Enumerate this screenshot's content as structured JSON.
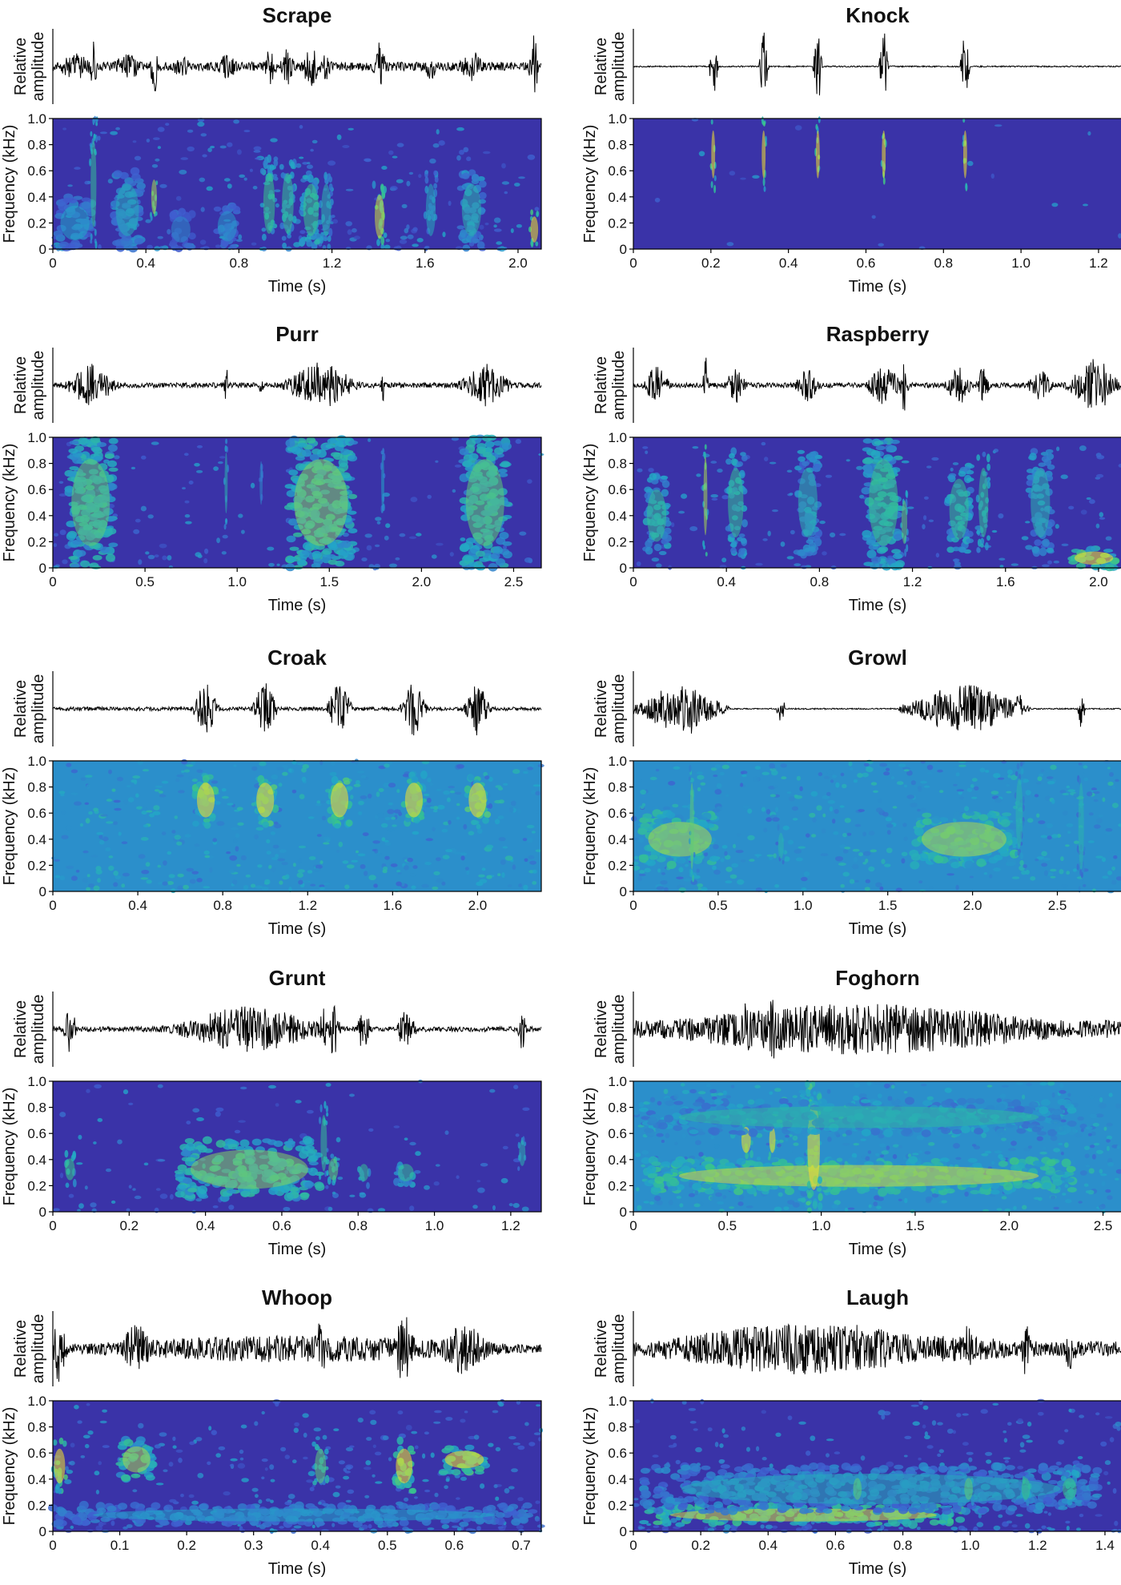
{
  "figure": {
    "y_label_waveform": [
      "Relative",
      "amplitude"
    ],
    "y_label_spectrogram": "Frequency (kHz)",
    "x_label": "Time (s)",
    "freq_ticks": [
      "0",
      "0.2",
      "0.4",
      "0.6",
      "0.8",
      "1.0"
    ],
    "colors": {
      "background": "#3a33a8",
      "low": "#3f5fd0",
      "mid": "#22a6c8",
      "high": "#39c48a",
      "peak": "#f5e12a",
      "waveform": "#000000"
    }
  },
  "chart_data": [
    {
      "type": "heatmap",
      "title": "Scrape",
      "xlim": [
        0,
        2.1
      ],
      "ylim": [
        0,
        1.0
      ],
      "x_ticks": [
        0,
        0.4,
        0.8,
        1.2,
        1.6,
        2.0
      ],
      "x_tick_labels": [
        "0",
        "0.4",
        "0.8",
        "1.2",
        "1.6",
        "2.0"
      ],
      "xlabel": "Time (s)",
      "ylabel": "Frequency (kHz)",
      "noise": 0.25,
      "background": "dark",
      "waveform_noise": 0.35,
      "bursts": [
        [
          0.02,
          0.15,
          0,
          0.4,
          0.5
        ],
        [
          0.16,
          0.03,
          0,
          1.0,
          0.7
        ],
        [
          0.26,
          0.12,
          0,
          0.6,
          0.55
        ],
        [
          0.42,
          0.03,
          0.2,
          0.6,
          0.9
        ],
        [
          0.5,
          0.1,
          0,
          0.3,
          0.4
        ],
        [
          0.7,
          0.1,
          0,
          0.35,
          0.45
        ],
        [
          0.9,
          0.06,
          0,
          0.7,
          0.75
        ],
        [
          0.98,
          0.06,
          0,
          0.7,
          0.7
        ],
        [
          1.07,
          0.08,
          0,
          0.6,
          0.75
        ],
        [
          1.15,
          0.05,
          0,
          0.6,
          0.6
        ],
        [
          1.38,
          0.05,
          0,
          0.5,
          0.95
        ],
        [
          1.6,
          0.05,
          0,
          0.6,
          0.55
        ],
        [
          1.75,
          0.1,
          0,
          0.6,
          0.6
        ],
        [
          2.05,
          0.04,
          0,
          0.3,
          1.0
        ]
      ]
    },
    {
      "type": "heatmap",
      "title": "Knock",
      "xlim": [
        0,
        1.26
      ],
      "ylim": [
        0,
        1.0
      ],
      "x_ticks": [
        0,
        0.2,
        0.4,
        0.6,
        0.8,
        1.0,
        1.2
      ],
      "x_tick_labels": [
        "0",
        "0.2",
        "0.4",
        "0.6",
        "0.8",
        "1.0",
        "1.2"
      ],
      "xlabel": "Time (s)",
      "ylabel": "Frequency (kHz)",
      "noise": 0.02,
      "background": "dark",
      "waveform_noise": 0.05,
      "bursts": [
        [
          0.2,
          0.012,
          0.45,
          1.0,
          1.0
        ],
        [
          0.33,
          0.012,
          0.45,
          1.0,
          1.0
        ],
        [
          0.47,
          0.012,
          0.45,
          1.0,
          1.0
        ],
        [
          0.64,
          0.012,
          0.45,
          1.0,
          1.0
        ],
        [
          0.85,
          0.012,
          0.45,
          1.0,
          1.0
        ]
      ]
    },
    {
      "type": "heatmap",
      "title": "Purr",
      "xlim": [
        0,
        2.65
      ],
      "ylim": [
        0,
        1.0
      ],
      "x_ticks": [
        0,
        0.5,
        1.0,
        1.5,
        2.0,
        2.5
      ],
      "x_tick_labels": [
        "0",
        "0.5",
        "1.0",
        "1.5",
        "2.0",
        "2.5"
      ],
      "xlabel": "Time (s)",
      "ylabel": "Frequency (kHz)",
      "noise": 0.15,
      "background": "dark",
      "waveform_noise": 0.2,
      "bursts": [
        [
          0.08,
          0.25,
          0,
          1.0,
          0.8
        ],
        [
          1.28,
          0.35,
          0,
          1.0,
          0.85
        ],
        [
          2.22,
          0.25,
          0,
          1.0,
          0.8
        ],
        [
          0.93,
          0.02,
          0.3,
          1.0,
          0.6
        ],
        [
          1.78,
          0.02,
          0.3,
          1.0,
          0.5
        ],
        [
          1.12,
          0.02,
          0.4,
          0.9,
          0.4
        ]
      ]
    },
    {
      "type": "heatmap",
      "title": "Raspberry",
      "xlim": [
        0,
        2.1
      ],
      "ylim": [
        0,
        1.0
      ],
      "x_ticks": [
        0,
        0.4,
        0.8,
        1.2,
        1.6,
        2.0
      ],
      "x_tick_labels": [
        "0",
        "0.4",
        "0.8",
        "1.2",
        "1.6",
        "2.0"
      ],
      "xlabel": "Time (s)",
      "ylabel": "Frequency (kHz)",
      "noise": 0.15,
      "background": "dark",
      "waveform_noise": 0.2,
      "bursts": [
        [
          0.05,
          0.1,
          0.1,
          0.7,
          0.7
        ],
        [
          0.3,
          0.02,
          0.1,
          1.0,
          0.9
        ],
        [
          0.4,
          0.08,
          0.1,
          0.9,
          0.7
        ],
        [
          0.7,
          0.1,
          0.1,
          0.9,
          0.6
        ],
        [
          1.0,
          0.15,
          0,
          1.0,
          0.75
        ],
        [
          1.15,
          0.03,
          0.1,
          0.6,
          0.8
        ],
        [
          1.35,
          0.1,
          0.1,
          0.8,
          0.7
        ],
        [
          1.48,
          0.05,
          0.1,
          0.9,
          0.7
        ],
        [
          1.7,
          0.1,
          0.1,
          0.9,
          0.6
        ],
        [
          1.88,
          0.2,
          0,
          0.15,
          1.0
        ]
      ]
    },
    {
      "type": "heatmap",
      "title": "Croak",
      "xlim": [
        0,
        2.3
      ],
      "ylim": [
        0,
        1.0
      ],
      "x_ticks": [
        0,
        0.4,
        0.8,
        1.2,
        1.6,
        2.0
      ],
      "x_tick_labels": [
        "0",
        "0.4",
        "0.8",
        "1.2",
        "1.6",
        "2.0"
      ],
      "xlabel": "Time (s)",
      "ylabel": "Frequency (kHz)",
      "noise": 0.5,
      "background": "mid",
      "waveform_noise": 0.15,
      "bursts": [
        [
          0.67,
          0.1,
          0.5,
          0.9,
          1.0
        ],
        [
          0.95,
          0.1,
          0.5,
          0.9,
          1.0
        ],
        [
          1.3,
          0.1,
          0.5,
          0.9,
          1.0
        ],
        [
          1.65,
          0.1,
          0.5,
          0.9,
          1.0
        ],
        [
          1.95,
          0.1,
          0.5,
          0.9,
          1.0
        ]
      ]
    },
    {
      "type": "heatmap",
      "title": "Growl",
      "xlim": [
        0,
        2.88
      ],
      "ylim": [
        0,
        1.0
      ],
      "x_ticks": [
        0,
        0.5,
        1.0,
        1.5,
        2.0,
        2.5
      ],
      "x_tick_labels": [
        "0",
        "0.5",
        "1.0",
        "1.5",
        "2.0",
        "2.5"
      ],
      "xlabel": "Time (s)",
      "ylabel": "Frequency (kHz)",
      "noise": 0.5,
      "background": "mid",
      "waveform_noise": 0.05,
      "bursts": [
        [
          0.05,
          0.45,
          0.2,
          0.6,
          0.9
        ],
        [
          0.33,
          0.03,
          0,
          1.0,
          0.8
        ],
        [
          0.85,
          0.04,
          0.2,
          0.5,
          0.6
        ],
        [
          1.65,
          0.6,
          0.2,
          0.6,
          0.9
        ],
        [
          2.25,
          0.05,
          0.2,
          1.0,
          0.6
        ],
        [
          2.62,
          0.04,
          0,
          1.0,
          0.6
        ]
      ]
    },
    {
      "type": "heatmap",
      "title": "Grunt",
      "xlim": [
        0,
        1.28
      ],
      "ylim": [
        0,
        1.0
      ],
      "x_ticks": [
        0,
        0.2,
        0.4,
        0.6,
        0.8,
        1.0,
        1.2
      ],
      "x_tick_labels": [
        "0",
        "0.2",
        "0.4",
        "0.6",
        "0.8",
        "1.0",
        "1.2"
      ],
      "xlabel": "Time (s)",
      "ylabel": "Frequency (kHz)",
      "noise": 0.12,
      "background": "dark",
      "waveform_noise": 0.2,
      "bursts": [
        [
          0.33,
          0.37,
          0.1,
          0.55,
          0.85
        ],
        [
          0.03,
          0.03,
          0.2,
          0.45,
          0.75
        ],
        [
          0.7,
          0.02,
          0.2,
          0.85,
          0.7
        ],
        [
          0.72,
          0.03,
          0.2,
          0.45,
          0.8
        ],
        [
          0.8,
          0.03,
          0.2,
          0.4,
          0.7
        ],
        [
          0.9,
          0.05,
          0.2,
          0.4,
          0.7
        ],
        [
          1.22,
          0.02,
          0.3,
          0.6,
          0.6
        ]
      ]
    },
    {
      "type": "heatmap",
      "title": "Foghorn",
      "xlim": [
        0,
        2.6
      ],
      "ylim": [
        0,
        1.0
      ],
      "x_ticks": [
        0,
        0.5,
        1.0,
        1.5,
        2.0,
        2.5
      ],
      "x_tick_labels": [
        "0",
        "0.5",
        "1.0",
        "1.5",
        "2.0",
        "2.5"
      ],
      "xlabel": "Time (s)",
      "ylabel": "Frequency (kHz)",
      "noise": 0.55,
      "background": "mid",
      "waveform_noise": 0.7,
      "bursts": [
        [
          0.05,
          2.3,
          0.15,
          0.4,
          0.95
        ],
        [
          0.57,
          0.06,
          0.4,
          0.7,
          1.0
        ],
        [
          0.72,
          0.04,
          0.4,
          0.7,
          1.0
        ],
        [
          0.92,
          0.08,
          0,
          1.0,
          1.0
        ],
        [
          0.05,
          2.3,
          0.6,
          0.85,
          0.65
        ]
      ]
    },
    {
      "type": "heatmap",
      "title": "Whoop",
      "xlim": [
        0,
        0.73
      ],
      "ylim": [
        0,
        1.0
      ],
      "x_ticks": [
        0,
        0.1,
        0.2,
        0.3,
        0.4,
        0.5,
        0.6,
        0.7
      ],
      "x_tick_labels": [
        "0",
        "0.1",
        "0.2",
        "0.3",
        "0.4",
        "0.5",
        "0.6",
        "0.7"
      ],
      "xlabel": "Time (s)",
      "ylabel": "Frequency (kHz)",
      "noise": 0.35,
      "background": "dark",
      "waveform_noise": 0.15,
      "bursts": [
        [
          0.0,
          0.02,
          0.3,
          0.7,
          1.0
        ],
        [
          0.1,
          0.05,
          0.4,
          0.7,
          0.9
        ],
        [
          0.39,
          0.02,
          0.3,
          0.7,
          0.8
        ],
        [
          0.51,
          0.03,
          0.3,
          0.7,
          1.0
        ],
        [
          0.58,
          0.07,
          0.45,
          0.65,
          1.0
        ],
        [
          0.0,
          0.72,
          0.05,
          0.2,
          0.5
        ]
      ]
    },
    {
      "type": "heatmap",
      "title": "Laugh",
      "xlim": [
        0,
        1.45
      ],
      "ylim": [
        0,
        1.0
      ],
      "x_ticks": [
        0,
        0.2,
        0.4,
        0.6,
        0.8,
        1.0,
        1.2,
        1.4
      ],
      "x_tick_labels": [
        "0",
        "0.2",
        "0.4",
        "0.6",
        "0.8",
        "1.0",
        "1.2",
        "1.4"
      ],
      "xlabel": "Time (s)",
      "ylabel": "Frequency (kHz)",
      "noise": 0.3,
      "background": "dark",
      "waveform_noise": 0.6,
      "bursts": [
        [
          0.03,
          0.95,
          0.05,
          0.2,
          0.95
        ],
        [
          0.03,
          1.35,
          0.15,
          0.5,
          0.55
        ],
        [
          0.65,
          0.03,
          0.2,
          0.45,
          0.8
        ],
        [
          0.98,
          0.03,
          0.2,
          0.45,
          0.8
        ],
        [
          1.15,
          0.03,
          0.2,
          0.45,
          0.75
        ],
        [
          1.27,
          0.05,
          0.2,
          0.45,
          0.75
        ]
      ]
    }
  ]
}
